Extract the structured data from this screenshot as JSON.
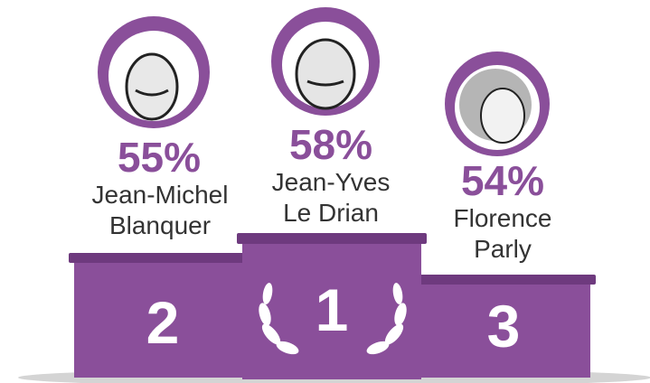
{
  "podium": [
    {
      "rank": 2,
      "percent": "55%",
      "name_lines": [
        "Jean-Michel",
        "Blanquer"
      ]
    },
    {
      "rank": 1,
      "percent": "58%",
      "name_lines": [
        "Jean-Yves",
        "Le Drian"
      ]
    },
    {
      "rank": 3,
      "percent": "54%",
      "name_lines": [
        "Florence",
        "Parly"
      ]
    }
  ]
}
